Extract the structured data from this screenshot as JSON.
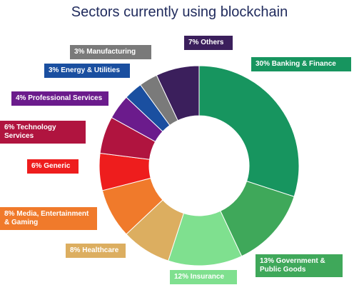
{
  "chart_data": {
    "type": "donut",
    "title": "Sectors currently using blockchain",
    "categories": [
      "Banking & Finance",
      "Government & Public Goods",
      "Insurance",
      "Healthcare",
      "Media, Entertainment & Gaming",
      "Generic",
      "Technology Services",
      "Professional Services",
      "Energy & Utilities",
      "Manufacturing",
      "Others"
    ],
    "values": [
      30,
      13,
      12,
      8,
      8,
      6,
      6,
      4,
      3,
      3,
      7
    ],
    "value_labels": [
      "30%",
      "13%",
      "12%",
      "8%",
      "8%",
      "6%",
      "6%",
      "4%",
      "3%",
      "3%",
      "7%"
    ],
    "colors": [
      "#17955f",
      "#3fa85a",
      "#7fe08f",
      "#dcae60",
      "#f07a2b",
      "#ee1d1d",
      "#b0143f",
      "#6b1b8c",
      "#1a4fa0",
      "#7a7a7a",
      "#3b1f5c"
    ]
  }
}
